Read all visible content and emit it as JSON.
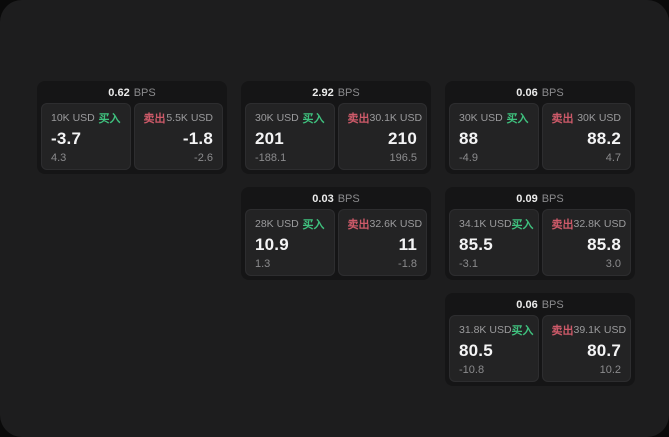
{
  "labels": {
    "bps": "BPS",
    "buy": "买入",
    "sell": "卖出"
  },
  "colors": {
    "buy_green": "#3fc17e",
    "sell_red": "#cd5a69",
    "surface_bg": "#1d1d1e",
    "card_bg": "#151516",
    "tile_bg": "#232324"
  },
  "cards": [
    {
      "col": 1,
      "row": 1,
      "bps": "0.62",
      "buy": {
        "amount": "10K USD",
        "price": "-3.7",
        "delta": "4.3"
      },
      "sell": {
        "amount": "5.5K USD",
        "price": "-1.8",
        "delta": "-2.6"
      }
    },
    {
      "col": 2,
      "row": 1,
      "bps": "2.92",
      "buy": {
        "amount": "30K USD",
        "price": "201",
        "delta": "-188.1"
      },
      "sell": {
        "amount": "30.1K USD",
        "price": "210",
        "delta": "196.5"
      }
    },
    {
      "col": 3,
      "row": 1,
      "bps": "0.06",
      "buy": {
        "amount": "30K USD",
        "price": "88",
        "delta": "-4.9"
      },
      "sell": {
        "amount": "30K USD",
        "price": "88.2",
        "delta": "4.7"
      }
    },
    {
      "col": 2,
      "row": 2,
      "bps": "0.03",
      "buy": {
        "amount": "28K USD",
        "price": "10.9",
        "delta": "1.3"
      },
      "sell": {
        "amount": "32.6K USD",
        "price": "11",
        "delta": "-1.8"
      }
    },
    {
      "col": 3,
      "row": 2,
      "bps": "0.09",
      "buy": {
        "amount": "34.1K USD",
        "price": "85.5",
        "delta": "-3.1"
      },
      "sell": {
        "amount": "32.8K USD",
        "price": "85.8",
        "delta": "3.0"
      }
    },
    {
      "col": 3,
      "row": 3,
      "bps": "0.06",
      "buy": {
        "amount": "31.8K USD",
        "price": "80.5",
        "delta": "-10.8"
      },
      "sell": {
        "amount": "39.1K USD",
        "price": "80.7",
        "delta": "10.2"
      }
    }
  ]
}
